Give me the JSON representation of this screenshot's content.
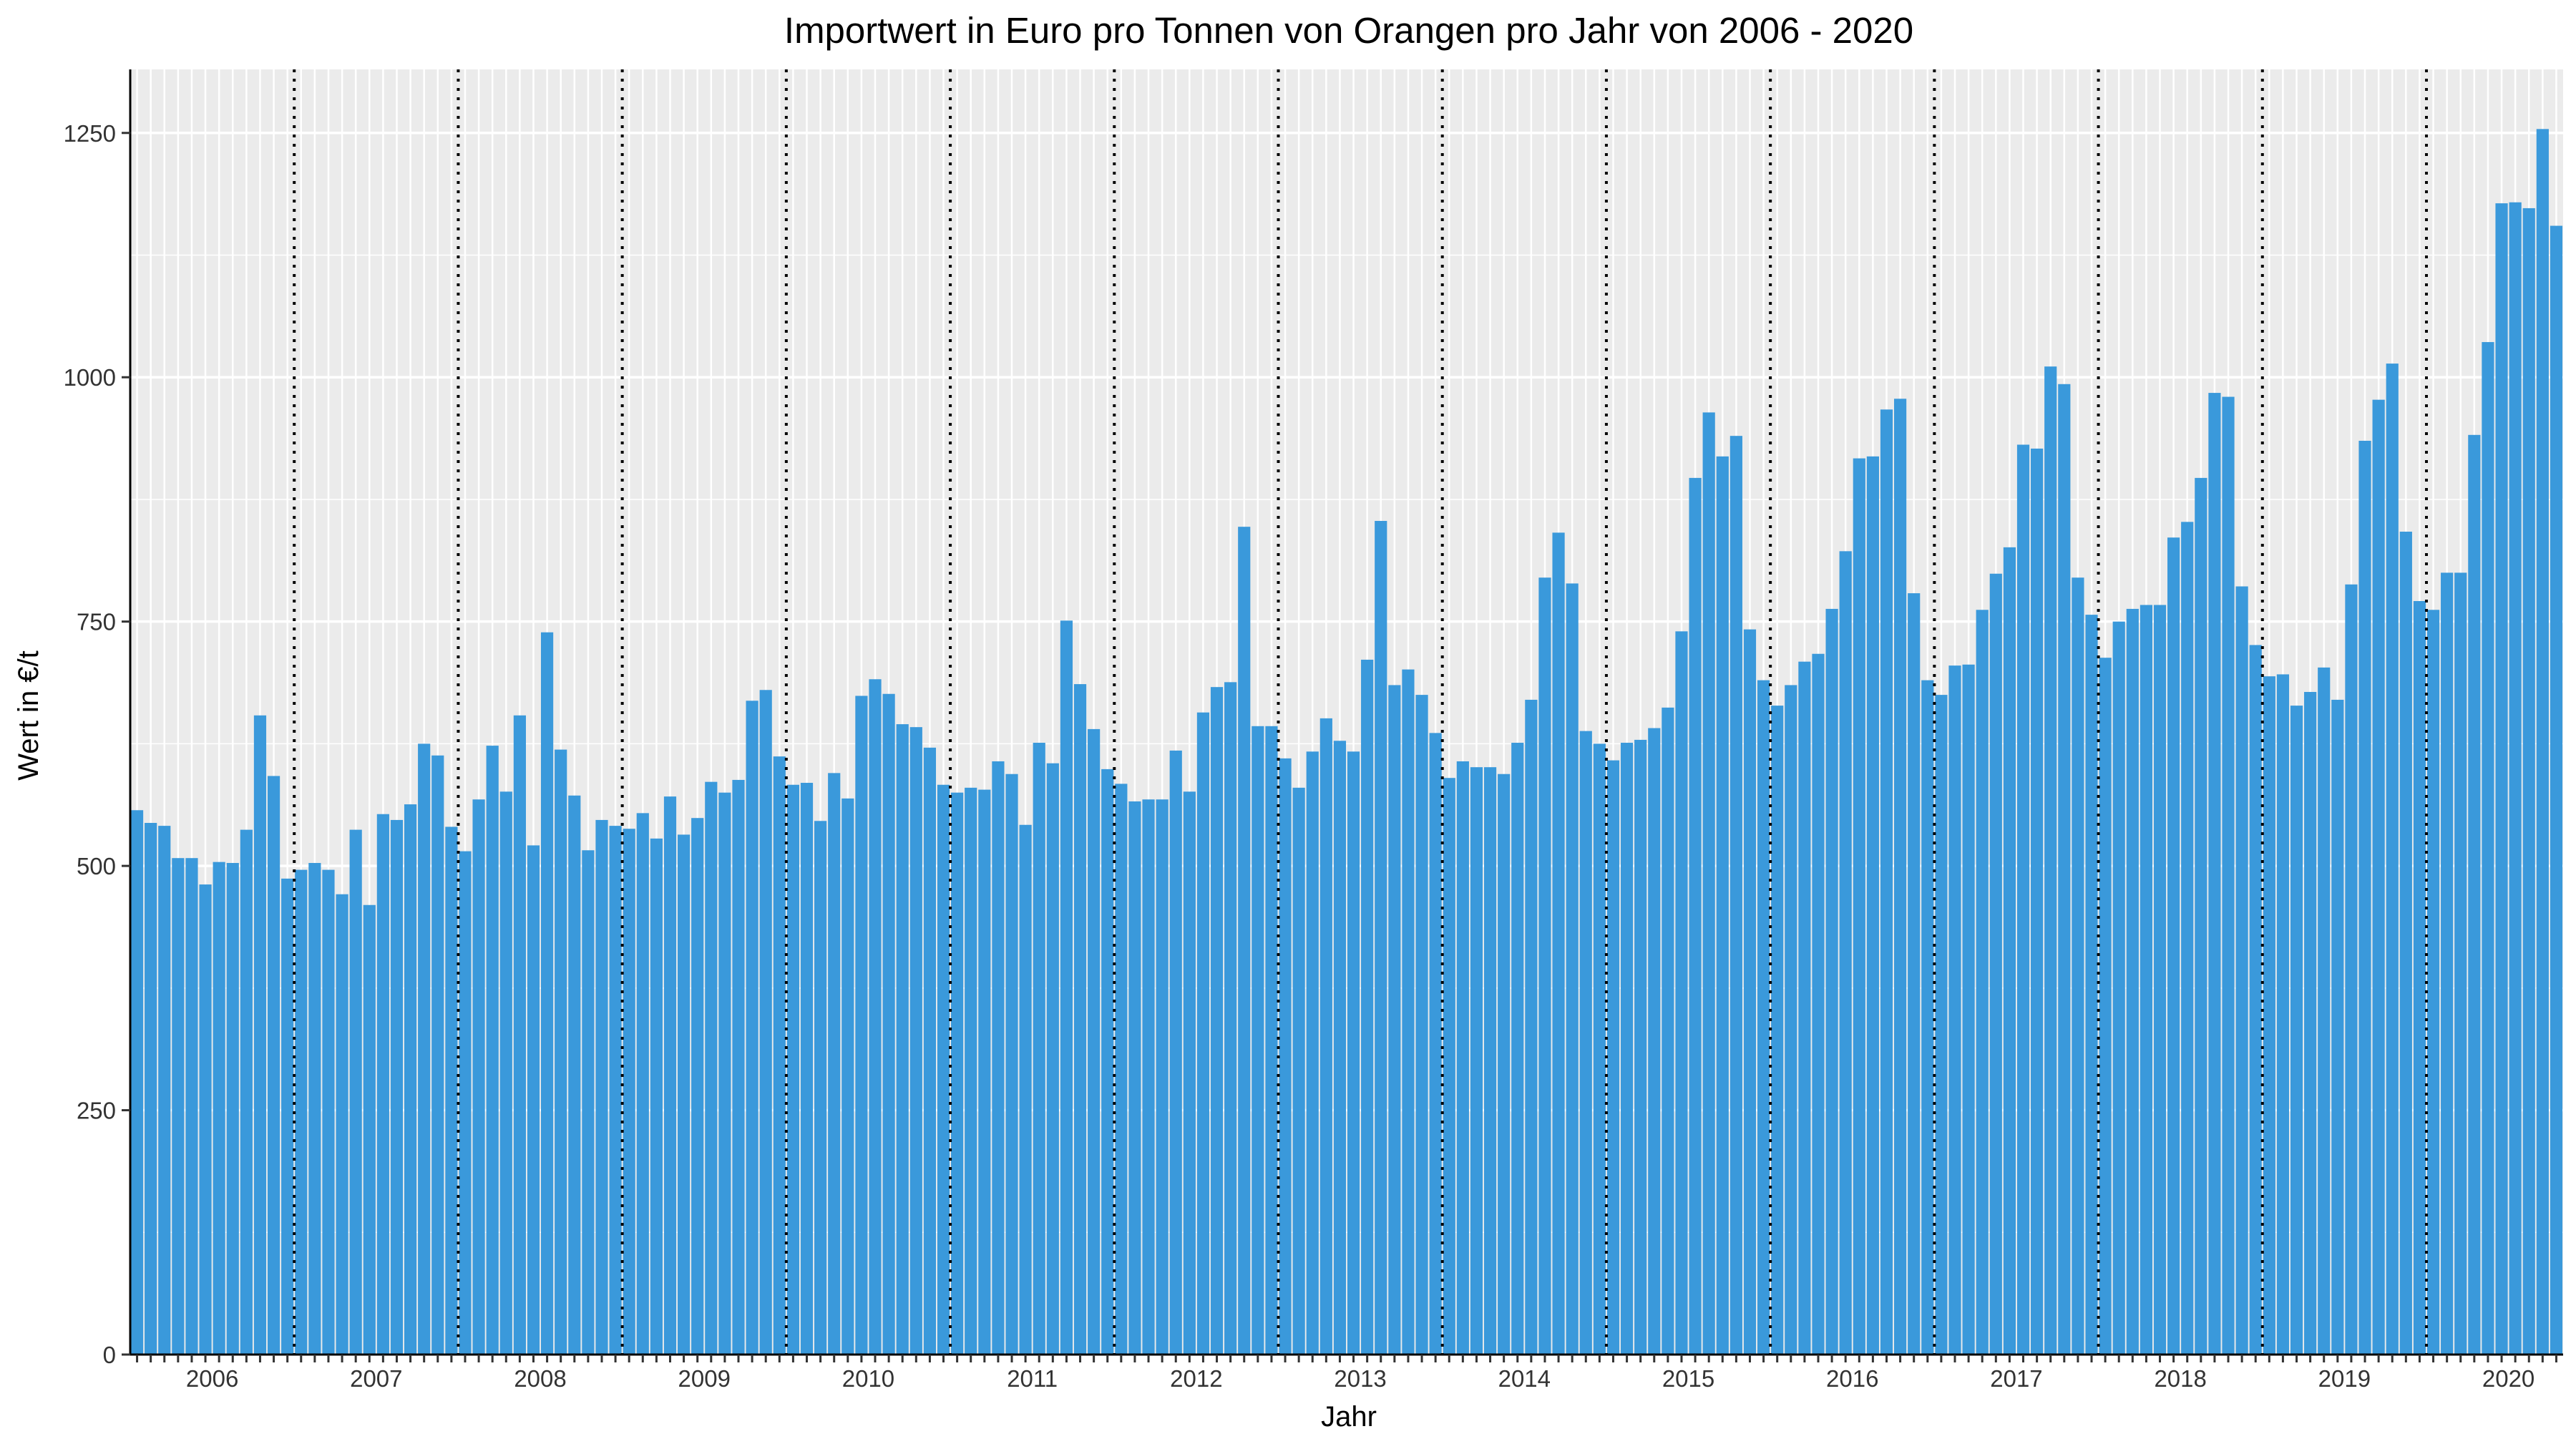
{
  "chart_data": {
    "type": "bar",
    "title": "Importwert in Euro pro Tonnen von Orangen pro Jahr von 2006 - 2020",
    "xlabel": "Jahr",
    "ylabel": "Wert in €/t",
    "ylim": [
      0,
      1315
    ],
    "yticks": [
      0,
      250,
      500,
      750,
      1000,
      1250
    ],
    "year_labels": [
      "2006",
      "2007",
      "2008",
      "2009",
      "2010",
      "2011",
      "2012",
      "2013",
      "2014",
      "2015",
      "2016",
      "2017",
      "2018",
      "2019",
      "2020"
    ],
    "months_per_year": 12,
    "year_separators": "dotted",
    "grid": true,
    "background": "#ebebeb",
    "bar_color": "#3a99db",
    "values": [
      557,
      544,
      541,
      508,
      508,
      481,
      504,
      503,
      537,
      654,
      592,
      487,
      496,
      503,
      496,
      471,
      537,
      460,
      553,
      547,
      563,
      625,
      613,
      540,
      515,
      568,
      623,
      576,
      654,
      521,
      739,
      619,
      572,
      516,
      547,
      541,
      538,
      554,
      528,
      571,
      532,
      549,
      586,
      575,
      588,
      669,
      680,
      612,
      583,
      585,
      546,
      595,
      569,
      674,
      691,
      676,
      645,
      642,
      621,
      583,
      575,
      580,
      578,
      607,
      594,
      542,
      626,
      605,
      751,
      686,
      640,
      599,
      584,
      566,
      568,
      568,
      618,
      576,
      657,
      683,
      688,
      847,
      643,
      643,
      610,
      580,
      617,
      651,
      628,
      617,
      711,
      853,
      685,
      701,
      675,
      636,
      590,
      607,
      601,
      601,
      594,
      626,
      670,
      795,
      841,
      789,
      638,
      625,
      608,
      626,
      629,
      641,
      662,
      740,
      897,
      964,
      919,
      940,
      742,
      690,
      664,
      685,
      709,
      717,
      763,
      822,
      917,
      919,
      967,
      978,
      779,
      690,
      675,
      705,
      706,
      762,
      799,
      826,
      931,
      927,
      1011,
      993,
      795,
      757,
      713,
      750,
      763,
      767,
      767,
      836,
      852,
      897,
      984,
      980,
      786,
      726,
      694,
      696,
      664,
      678,
      703,
      670,
      788,
      935,
      977,
      1014,
      842,
      771,
      762,
      800,
      800,
      941,
      1036,
      1178,
      1179,
      1173,
      1254,
      1155
    ]
  }
}
